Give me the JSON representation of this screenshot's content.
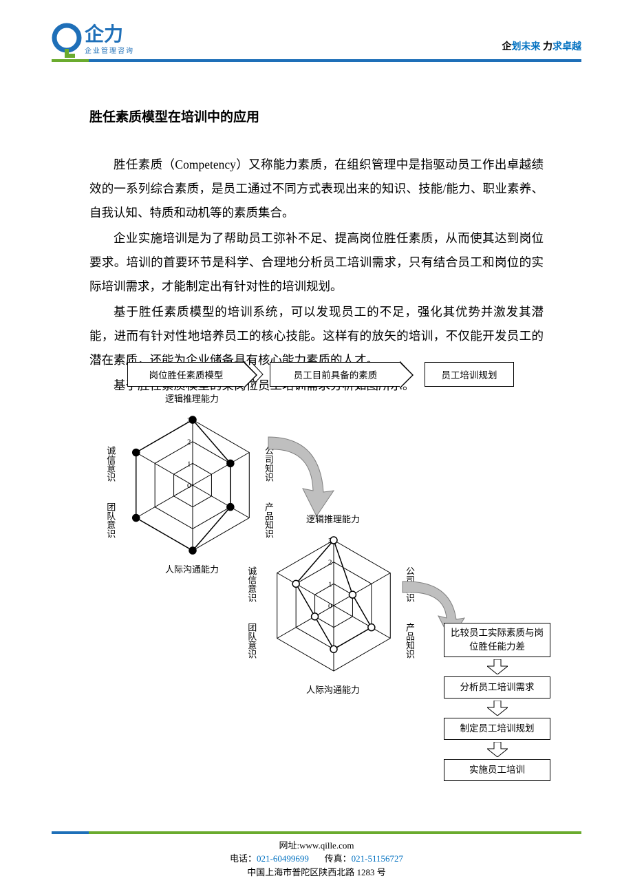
{
  "header": {
    "logo_main": "企力",
    "logo_sub": "企业管理咨询",
    "tagline_parts": [
      "企",
      "划未来",
      "    力",
      "求卓越"
    ],
    "logo_colors": {
      "circle": "#1e6fb8",
      "accent": "#6aab2e",
      "text": "#1e6fb8"
    }
  },
  "title": "胜任素质模型在培训中的应用",
  "paragraphs": [
    "胜任素质（Competency）又称能力素质，在组织管理中是指驱动员工作出卓越绩效的一系列综合素质，是员工通过不同方式表现出来的知识、技能/能力、职业素养、自我认知、特质和动机等的素质集合。",
    "企业实施培训是为了帮助员工弥补不足、提高岗位胜任素质，从而使其达到岗位要求。培训的首要环节是科学、合理地分析员工培训需求，只有结合员工和岗位的实际培训需求，才能制定出有针对性的培训规划。",
    "基于胜任素质模型的培训系统，可以发现员工的不足，强化其优势并激发其潜能，进而有针对性地培养员工的核心技能。这样有的放矢的培训，不仅能开发员工的潜在素质，还能为企业储备具有核心能力素质的人才。",
    "基于胜任素质模型的某岗位员工培训需求分析如图所示。"
  ],
  "top_flow": {
    "box1": "岗位胜任素质模型",
    "box2": "员工目前具备的素质",
    "box3": "员工培训规划"
  },
  "radar_common": {
    "axes": [
      "逻辑推理能力",
      "公司知识",
      "产品知识",
      "人际沟通能力",
      "团队意识",
      "诚信意识"
    ],
    "rings": [
      0,
      1,
      2,
      3
    ],
    "ring_labels": [
      "0",
      "1",
      "2",
      "3"
    ],
    "grid_color": "#000000",
    "line_width": 1
  },
  "radar1": {
    "values": [
      3,
      2,
      2,
      3,
      3,
      3
    ],
    "marker": "filled-circle",
    "marker_color": "#000000"
  },
  "radar2": {
    "values": [
      3,
      1,
      2,
      2,
      1,
      2
    ],
    "marker": "open-circle",
    "marker_color": "#000000"
  },
  "flow_boxes": [
    "比较员工实际素质与岗位胜任能力差",
    "分析员工培训需求",
    "制定员工培训规划",
    "实施员工培训"
  ],
  "footer": {
    "url_label": "网址:",
    "url": "www.qille.com",
    "phone_label": "电话：",
    "phone": "021-60499699",
    "fax_label": "传真：",
    "fax": "021-51156727",
    "address": "中国上海市普陀区陕西北路 1283 号"
  },
  "colors": {
    "brand_blue": "#0070c0",
    "brand_green": "#6aab2e",
    "rule_blue": "#1e6fb8",
    "text": "#000000",
    "arrow_fill": "#bfbfbf"
  }
}
